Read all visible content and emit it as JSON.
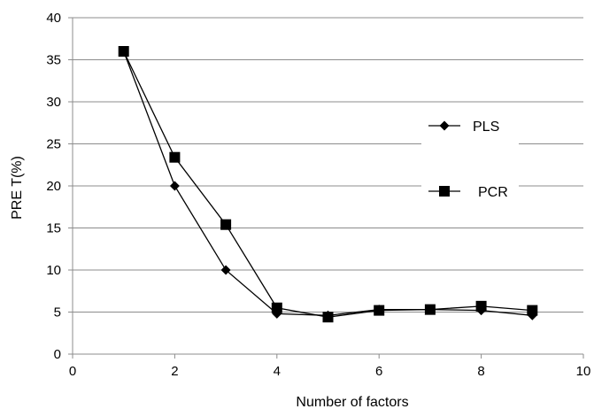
{
  "chart_data": {
    "type": "line",
    "xlabel": "Number of factors",
    "ylabel": "PRE T(%)",
    "xlim": [
      0,
      10
    ],
    "ylim": [
      0,
      40
    ],
    "xticks": [
      0,
      2,
      4,
      6,
      8,
      10
    ],
    "yticks": [
      0,
      5,
      10,
      15,
      20,
      25,
      30,
      35,
      40
    ],
    "grid": "horizontal",
    "legend_position": "right",
    "series": [
      {
        "name": "PLS",
        "marker": "diamond",
        "color": "#000000",
        "points": [
          {
            "x": 1,
            "y": 36
          },
          {
            "x": 2,
            "y": 20
          },
          {
            "x": 3,
            "y": 10
          },
          {
            "x": 4,
            "y": 4.8
          },
          {
            "x": 5,
            "y": 4.6
          },
          {
            "x": 6,
            "y": 5.3
          },
          {
            "x": 7,
            "y": 5.3
          },
          {
            "x": 8,
            "y": 5.2
          },
          {
            "x": 9,
            "y": 4.6
          }
        ]
      },
      {
        "name": "PCR",
        "marker": "square",
        "color": "#000000",
        "points": [
          {
            "x": 1,
            "y": 36
          },
          {
            "x": 2,
            "y": 23.4
          },
          {
            "x": 3,
            "y": 15.4
          },
          {
            "x": 4,
            "y": 5.5
          },
          {
            "x": 5,
            "y": 4.4
          },
          {
            "x": 6,
            "y": 5.2
          },
          {
            "x": 7,
            "y": 5.3
          },
          {
            "x": 8,
            "y": 5.7
          },
          {
            "x": 9,
            "y": 5.2
          }
        ]
      }
    ]
  }
}
